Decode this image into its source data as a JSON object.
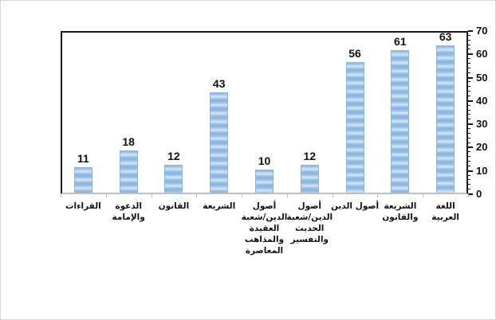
{
  "chart_data": {
    "type": "bar",
    "title": "",
    "xlabel": "",
    "ylabel": "",
    "categories": [
      "القراءات",
      "الدعوة\nوالإمامة",
      "القانون",
      "الشريعة",
      "أصول\nالدين/شعبة\nالعقيدة\nوالمذاهب\nالمعاصرة",
      "أصول\nالدين/شعبة\nالحديث\nوالتفسير",
      "أصول الدين",
      "الشريعة\nوالقانون",
      "اللغة العربية"
    ],
    "values": [
      11,
      18,
      12,
      43,
      10,
      12,
      56,
      61,
      63
    ],
    "data_labels": [
      "11",
      "18",
      "12",
      "43",
      "10",
      "12",
      "56",
      "61",
      "63"
    ],
    "ylim": [
      0,
      70
    ],
    "yticks": [
      0,
      10,
      20,
      30,
      40,
      50,
      60,
      70
    ],
    "ytick_labels": [
      "0",
      "10",
      "20",
      "30",
      "40",
      "50",
      "60",
      "70"
    ],
    "minor_tick_step": 2,
    "axis_side": "right",
    "grid": false,
    "legend": "none",
    "colors": {
      "bar_dark": "#86b4df",
      "bar_base": "#9cc2e7",
      "bar_light": "#cfe2f4",
      "bar_border": "#8ab4dd",
      "value_label": "#111111",
      "value_axis_line": "#1a1a1a",
      "category_axis_line": "#bfbfbf",
      "chart_border": "#d6d6d6",
      "background": "#ffffff"
    }
  }
}
